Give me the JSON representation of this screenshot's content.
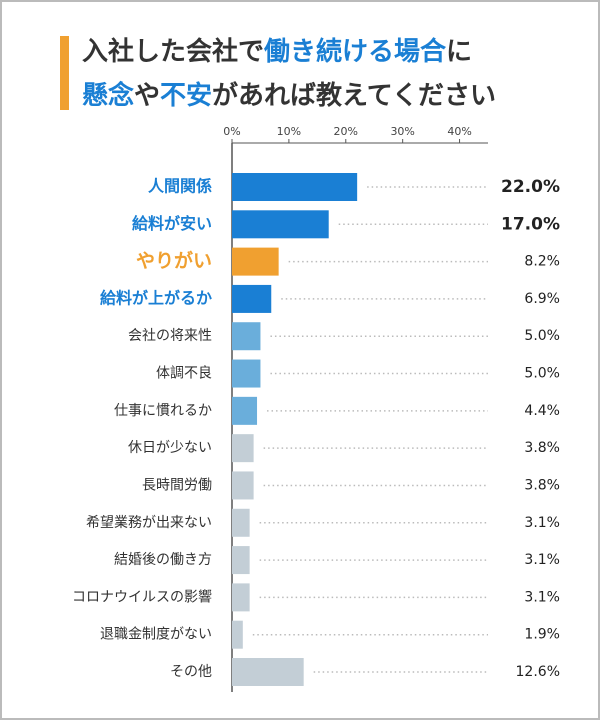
{
  "chart_data": {
    "type": "bar",
    "orientation": "horizontal",
    "title": [
      [
        {
          "text": "入社した会社で",
          "color": "#333333"
        },
        {
          "text": "働き続ける場合",
          "color": "#1a7fd4"
        },
        {
          "text": "に",
          "color": "#333333"
        }
      ],
      [
        {
          "text": "懸念",
          "color": "#1a7fd4"
        },
        {
          "text": "や",
          "color": "#333333"
        },
        {
          "text": "不安",
          "color": "#1a7fd4"
        },
        {
          "text": "があれば教えてください",
          "color": "#333333"
        }
      ]
    ],
    "categories": [
      "人間関係",
      "給料が安い",
      "やりがい",
      "給料が上がるか",
      "会社の将来性",
      "体調不良",
      "仕事に慣れるか",
      "休日が少ない",
      "長時間労働",
      "希望業務が出来ない",
      "結婚後の働き方",
      "コロナウイルスの影響",
      "退職金制度がない",
      "その他"
    ],
    "values": [
      22.0,
      17.0,
      8.2,
      6.9,
      5.0,
      5.0,
      4.4,
      3.8,
      3.8,
      3.1,
      3.1,
      3.1,
      1.9,
      12.6
    ],
    "value_labels": [
      "22.0%",
      "17.0%",
      "8.2%",
      "6.9%",
      "5.0%",
      "5.0%",
      "4.4%",
      "3.8%",
      "3.8%",
      "3.1%",
      "3.1%",
      "3.1%",
      "1.9%",
      "12.6%"
    ],
    "colors": [
      "#1a7fd4",
      "#1a7fd4",
      "#f0a030",
      "#1a7fd4",
      "#6aaedb",
      "#6aaedb",
      "#6aaedb",
      "#c3ced6",
      "#c3ced6",
      "#c3ced6",
      "#c3ced6",
      "#c3ced6",
      "#c3ced6",
      "#c3ced6"
    ],
    "label_colors": [
      "#1a7fd4",
      "#1a7fd4",
      "#f0a030",
      "#1a7fd4",
      "#333333",
      "#333333",
      "#333333",
      "#333333",
      "#333333",
      "#333333",
      "#333333",
      "#333333",
      "#333333",
      "#333333"
    ],
    "xlim": [
      0,
      45
    ],
    "xticks": [
      {
        "value": 0,
        "label": "0%"
      },
      {
        "value": 10,
        "label": "10%"
      },
      {
        "value": 20,
        "label": "20%"
      },
      {
        "value": 30,
        "label": "30%"
      },
      {
        "value": 40,
        "label": "40%"
      }
    ]
  }
}
